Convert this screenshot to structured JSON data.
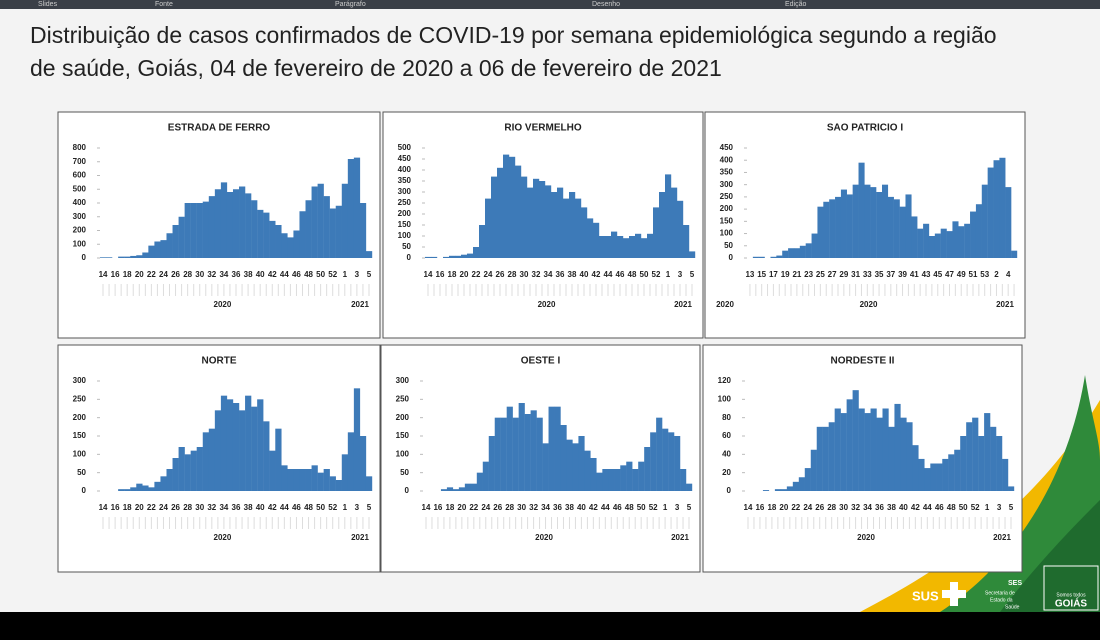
{
  "ribbon": [
    "Slides",
    "Fonte",
    "Parágrafo",
    "Desenho",
    "Edição"
  ],
  "slide_title": [
    "Distribuição de casos confirmados de COVID-19 por semana epidemiológica segundo a região",
    "de saúde, Goiás, 04 de fevereiro de 2020 a 06 de fevereiro de 2021"
  ],
  "logo": {
    "sus": "SUS",
    "ses": "SES",
    "secretaria": [
      "Secretaria de",
      "Estado da",
      "Saúde"
    ],
    "goias": "GOIÁS",
    "goias_tag": "Somos todos"
  },
  "chart_data": [
    {
      "type": "bar",
      "title": "ESTRADA DE FERRO",
      "color": "#3d7ab8",
      "categories": [
        "14",
        null,
        "16",
        null,
        "18",
        null,
        "20",
        null,
        "22",
        null,
        "24",
        null,
        "26",
        null,
        "28",
        null,
        "30",
        null,
        "32",
        null,
        "34",
        null,
        "36",
        null,
        "38",
        null,
        "40",
        null,
        "42",
        null,
        "44",
        null,
        "46",
        null,
        "48",
        null,
        "50",
        null,
        "52",
        null,
        "1",
        null,
        "3",
        null,
        "5"
      ],
      "values": [
        5,
        5,
        0,
        10,
        10,
        15,
        20,
        40,
        90,
        120,
        130,
        180,
        240,
        300,
        400,
        400,
        400,
        410,
        450,
        500,
        550,
        480,
        500,
        520,
        470,
        420,
        350,
        330,
        270,
        240,
        180,
        150,
        200,
        340,
        420,
        520,
        540,
        450,
        360,
        380,
        540,
        720,
        730,
        400,
        50
      ],
      "ylim": [
        0,
        800
      ],
      "yticks": [
        0,
        100,
        200,
        300,
        400,
        500,
        600,
        700,
        800
      ],
      "year_labels": [
        "2020",
        "2021"
      ]
    },
    {
      "type": "bar",
      "title": "RIO VERMELHO",
      "color": "#3d7ab8",
      "categories": [
        "14",
        null,
        "16",
        null,
        "18",
        null,
        "20",
        null,
        "22",
        null,
        "24",
        null,
        "26",
        null,
        "28",
        null,
        "30",
        null,
        "32",
        null,
        "34",
        null,
        "36",
        null,
        "38",
        null,
        "40",
        null,
        "42",
        null,
        "44",
        null,
        "46",
        null,
        "48",
        null,
        "50",
        null,
        "52",
        null,
        "1",
        null,
        "3",
        null,
        "5"
      ],
      "values": [
        5,
        5,
        0,
        5,
        10,
        10,
        15,
        20,
        50,
        150,
        270,
        370,
        410,
        470,
        460,
        420,
        370,
        320,
        360,
        350,
        330,
        300,
        320,
        270,
        300,
        270,
        230,
        180,
        160,
        100,
        100,
        120,
        100,
        90,
        100,
        110,
        90,
        110,
        230,
        300,
        380,
        320,
        260,
        150,
        30
      ],
      "ylim": [
        0,
        500
      ],
      "yticks": [
        0,
        50,
        100,
        150,
        200,
        250,
        300,
        350,
        400,
        450,
        500
      ],
      "year_labels": [
        "2020",
        "2021"
      ]
    },
    {
      "type": "bar",
      "title": "SAO PATRICIO I",
      "color": "#3d7ab8",
      "categories": [
        "13",
        null,
        "15",
        null,
        "17",
        null,
        "19",
        null,
        "21",
        null,
        "23",
        null,
        "25",
        null,
        "27",
        null,
        "29",
        null,
        "31",
        null,
        "33",
        null,
        "35",
        null,
        "37",
        null,
        "39",
        null,
        "41",
        null,
        "43",
        null,
        "45",
        null,
        "47",
        null,
        "49",
        null,
        "51",
        null,
        "53",
        null,
        "2",
        null,
        "4",
        null
      ],
      "values": [
        0,
        5,
        5,
        0,
        5,
        10,
        30,
        40,
        40,
        50,
        60,
        100,
        210,
        230,
        240,
        250,
        280,
        260,
        300,
        390,
        300,
        290,
        270,
        300,
        250,
        240,
        210,
        260,
        170,
        120,
        140,
        90,
        100,
        120,
        110,
        150,
        130,
        140,
        190,
        220,
        300,
        370,
        400,
        410,
        290,
        30
      ],
      "ylim": [
        0,
        450
      ],
      "yticks": [
        0,
        50,
        100,
        150,
        200,
        250,
        300,
        350,
        400,
        450
      ],
      "year_labels": [
        "2020",
        "2020",
        "2021"
      ]
    },
    {
      "type": "bar",
      "title": "NORTE",
      "color": "#3d7ab8",
      "categories": [
        "14",
        null,
        "16",
        null,
        "18",
        null,
        "20",
        null,
        "22",
        null,
        "24",
        null,
        "26",
        null,
        "28",
        null,
        "30",
        null,
        "32",
        null,
        "34",
        null,
        "36",
        null,
        "38",
        null,
        "40",
        null,
        "42",
        null,
        "44",
        null,
        "46",
        null,
        "48",
        null,
        "50",
        null,
        "52",
        null,
        "1",
        null,
        "3",
        null,
        "5"
      ],
      "values": [
        0,
        0,
        0,
        5,
        5,
        10,
        20,
        15,
        10,
        25,
        40,
        60,
        90,
        120,
        100,
        110,
        120,
        160,
        170,
        220,
        260,
        250,
        240,
        220,
        260,
        230,
        250,
        190,
        110,
        170,
        70,
        60,
        60,
        60,
        60,
        70,
        50,
        60,
        40,
        30,
        100,
        160,
        280,
        150,
        40
      ],
      "ylim": [
        0,
        300
      ],
      "yticks": [
        0,
        50,
        100,
        150,
        200,
        250,
        300
      ],
      "year_labels": [
        "2020",
        "2021"
      ]
    },
    {
      "type": "bar",
      "title": "OESTE I",
      "color": "#3d7ab8",
      "categories": [
        "14",
        null,
        "16",
        null,
        "18",
        null,
        "20",
        null,
        "22",
        null,
        "24",
        null,
        "26",
        null,
        "28",
        null,
        "30",
        null,
        "32",
        null,
        "34",
        null,
        "36",
        null,
        "38",
        null,
        "40",
        null,
        "42",
        null,
        "44",
        null,
        "46",
        null,
        "48",
        null,
        "50",
        null,
        "52",
        null,
        "1",
        null,
        "3",
        null,
        "5"
      ],
      "values": [
        0,
        0,
        0,
        5,
        10,
        5,
        10,
        20,
        20,
        50,
        80,
        150,
        200,
        200,
        230,
        200,
        240,
        210,
        220,
        200,
        130,
        230,
        230,
        180,
        140,
        130,
        150,
        110,
        90,
        50,
        60,
        60,
        60,
        70,
        80,
        60,
        80,
        120,
        160,
        200,
        170,
        160,
        150,
        60,
        20
      ],
      "ylim": [
        0,
        300
      ],
      "yticks": [
        0,
        50,
        100,
        150,
        200,
        250,
        300
      ],
      "year_labels": [
        "2020",
        "2021"
      ]
    },
    {
      "type": "bar",
      "title": "NORDESTE II",
      "color": "#3d7ab8",
      "categories": [
        "14",
        null,
        "16",
        null,
        "18",
        null,
        "20",
        null,
        "22",
        null,
        "24",
        null,
        "26",
        null,
        "28",
        null,
        "30",
        null,
        "32",
        null,
        "34",
        null,
        "36",
        null,
        "38",
        null,
        "40",
        null,
        "42",
        null,
        "44",
        null,
        "46",
        null,
        "48",
        null,
        "50",
        null,
        "52",
        null,
        "1",
        null,
        "3",
        null,
        "5"
      ],
      "values": [
        0,
        0,
        0,
        1,
        0,
        2,
        2,
        5,
        10,
        15,
        25,
        45,
        70,
        70,
        75,
        90,
        85,
        100,
        110,
        90,
        85,
        90,
        80,
        90,
        70,
        95,
        80,
        75,
        50,
        35,
        25,
        30,
        30,
        35,
        40,
        45,
        60,
        75,
        80,
        60,
        85,
        70,
        60,
        35,
        5
      ],
      "ylim": [
        0,
        120
      ],
      "yticks": [
        0,
        20,
        40,
        60,
        80,
        100,
        120
      ],
      "year_labels": [
        "2020",
        "2021"
      ]
    }
  ]
}
